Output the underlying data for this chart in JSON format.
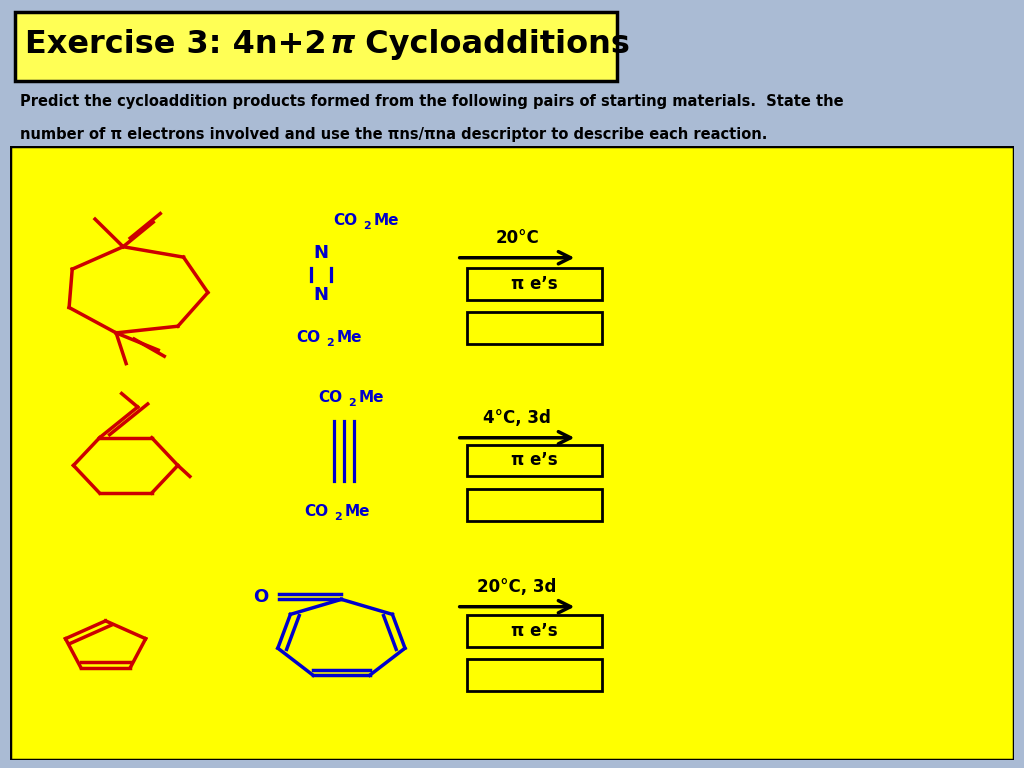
{
  "title_text": "Exercise 3: 4n+2 π Cycloadditions",
  "subtitle_line1": "Predict the cycloaddition products formed from the following pairs of starting materials.  State the",
  "subtitle_line2": "number of π electrons involved and use the πns/πna descriptor to describe each reaction.",
  "slide_bg": "#AABBD4",
  "yellow": "#FFFF00",
  "yellow_title": "#FFFF44",
  "red": "#CC0000",
  "blue": "#0000CC",
  "black": "#000000",
  "reaction1_condition": "20°C",
  "reaction2_condition": "4°C, 3d",
  "reaction3_condition": "20°C, 3d",
  "pi_text": "π e’s"
}
